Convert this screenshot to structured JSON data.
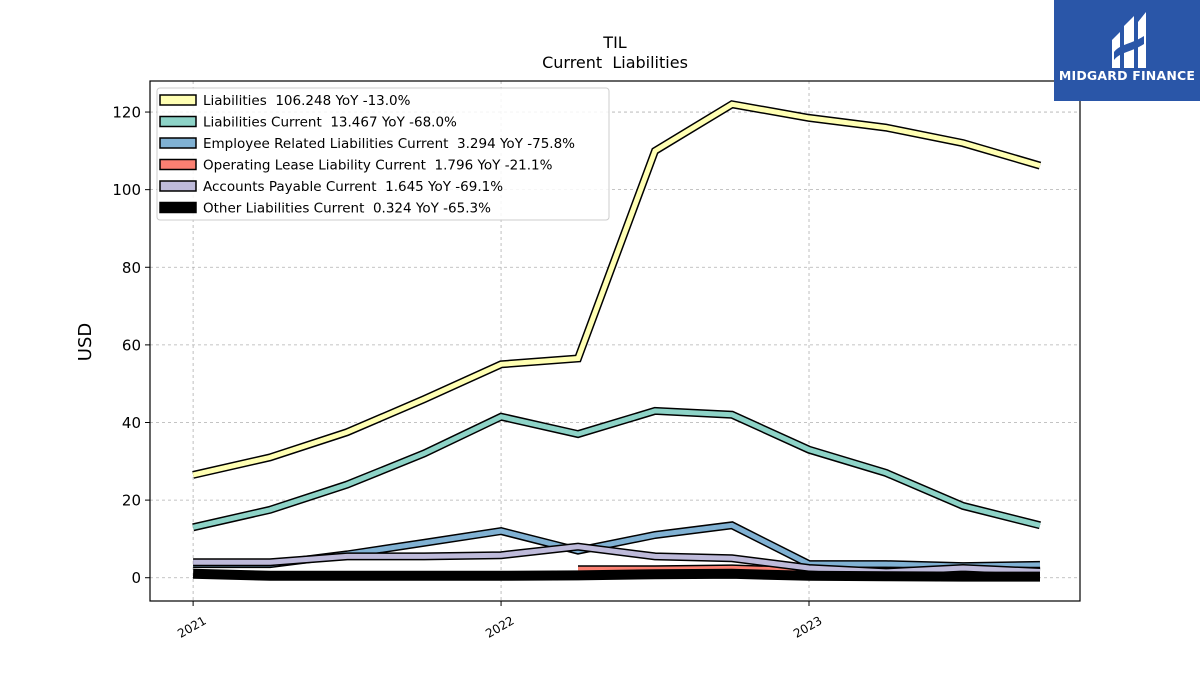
{
  "logo": {
    "text": "MIDGARD FINANCE"
  },
  "chart_data": {
    "type": "line",
    "title": "TIL",
    "subtitle": "Current  Liabilities",
    "xlabel": "",
    "ylabel": "USD",
    "xlim": [
      2020.86,
      2023.88
    ],
    "ylim": [
      -6,
      128
    ],
    "x_ticks": [
      {
        "value": 2021,
        "label": "2021"
      },
      {
        "value": 2022,
        "label": "2022"
      },
      {
        "value": 2023,
        "label": "2023"
      }
    ],
    "y_ticks": [
      0,
      20,
      40,
      60,
      80,
      100,
      120
    ],
    "grid": true,
    "legend_position": "top-left",
    "x": [
      2021.0,
      2021.25,
      2021.5,
      2021.75,
      2022.0,
      2022.25,
      2022.5,
      2022.75,
      2023.0,
      2023.25,
      2023.5,
      2023.75
    ],
    "series": [
      {
        "name": "Liabilities",
        "legend": "Liabilities  106.248 YoY -13.0%",
        "color": "#ffffb3",
        "values": [
          26.5,
          31,
          37.5,
          46,
          55,
          56.5,
          110,
          122,
          118.5,
          116,
          112,
          106.2
        ]
      },
      {
        "name": "Liabilities Current",
        "legend": "Liabilities Current  13.467 YoY -68.0%",
        "color": "#8dd3c7",
        "values": [
          13,
          17.5,
          24,
          32,
          41.5,
          37,
          43,
          42,
          33,
          27,
          18.5,
          13.5
        ]
      },
      {
        "name": "Employee Related Liabilities Current",
        "legend": "Employee Related Liabilities Current  3.294 YoY -75.8%",
        "color": "#80b1d3",
        "values": [
          3.5,
          3.5,
          6,
          9,
          12,
          7,
          11,
          13.5,
          3.5,
          3.5,
          3,
          3.3
        ]
      },
      {
        "name": "Operating Lease Liability Current",
        "legend": "Operating Lease Liability Current  1.796 YoY -21.1%",
        "color": "#fb8072",
        "values": [
          null,
          null,
          null,
          null,
          null,
          2.2,
          2.2,
          2.4,
          1.8,
          1.8,
          1.8,
          1.8
        ]
      },
      {
        "name": "Accounts Payable Current",
        "legend": "Accounts Payable Current  1.645 YoY -69.1%",
        "color": "#bebada",
        "values": [
          4,
          4,
          5.5,
          5.5,
          5.8,
          8,
          5.5,
          5,
          2.5,
          1.5,
          2.5,
          1.6
        ]
      },
      {
        "name": "Other Liabilities Current",
        "legend": "Other Liabilities Current  0.324 YoY -65.3%",
        "color": "#000000",
        "values": [
          1,
          0.5,
          0.5,
          0.5,
          0.5,
          0.6,
          0.9,
          1.0,
          0.5,
          0.4,
          0.3,
          0.3
        ]
      }
    ]
  }
}
